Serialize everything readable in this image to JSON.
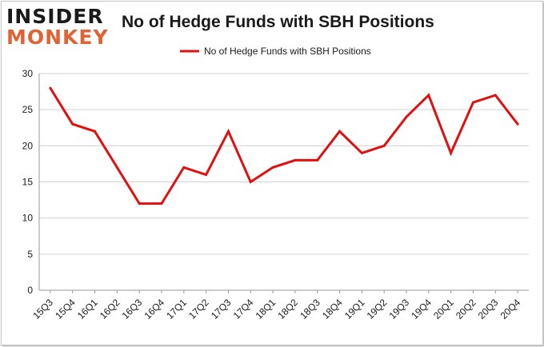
{
  "logo": {
    "line1": "INSIDER",
    "line2": "MONKEY"
  },
  "chart_data": {
    "type": "line",
    "title": "No of Hedge Funds with SBH Positions",
    "xlabel": "",
    "ylabel": "",
    "categories": [
      "15Q3",
      "15Q4",
      "16Q1",
      "16Q2",
      "16Q3",
      "16Q4",
      "17Q1",
      "17Q2",
      "17Q3",
      "17Q4",
      "18Q1",
      "18Q2",
      "18Q3",
      "18Q4",
      "19Q1",
      "19Q2",
      "19Q3",
      "19Q4",
      "20Q1",
      "20Q2",
      "20Q3",
      "20Q4"
    ],
    "series": [
      {
        "name": "No of Hedge Funds with SBH Positions",
        "color": "#e01010",
        "values": [
          28,
          23,
          22,
          17,
          12,
          12,
          17,
          16,
          22,
          15,
          17,
          18,
          18,
          22,
          19,
          20,
          24,
          27,
          19,
          26,
          27,
          23
        ]
      }
    ],
    "ylim": [
      0,
      30
    ],
    "yticks": [
      0,
      5,
      10,
      15,
      20,
      25,
      30
    ],
    "grid": true,
    "legend_position": "top-center"
  }
}
